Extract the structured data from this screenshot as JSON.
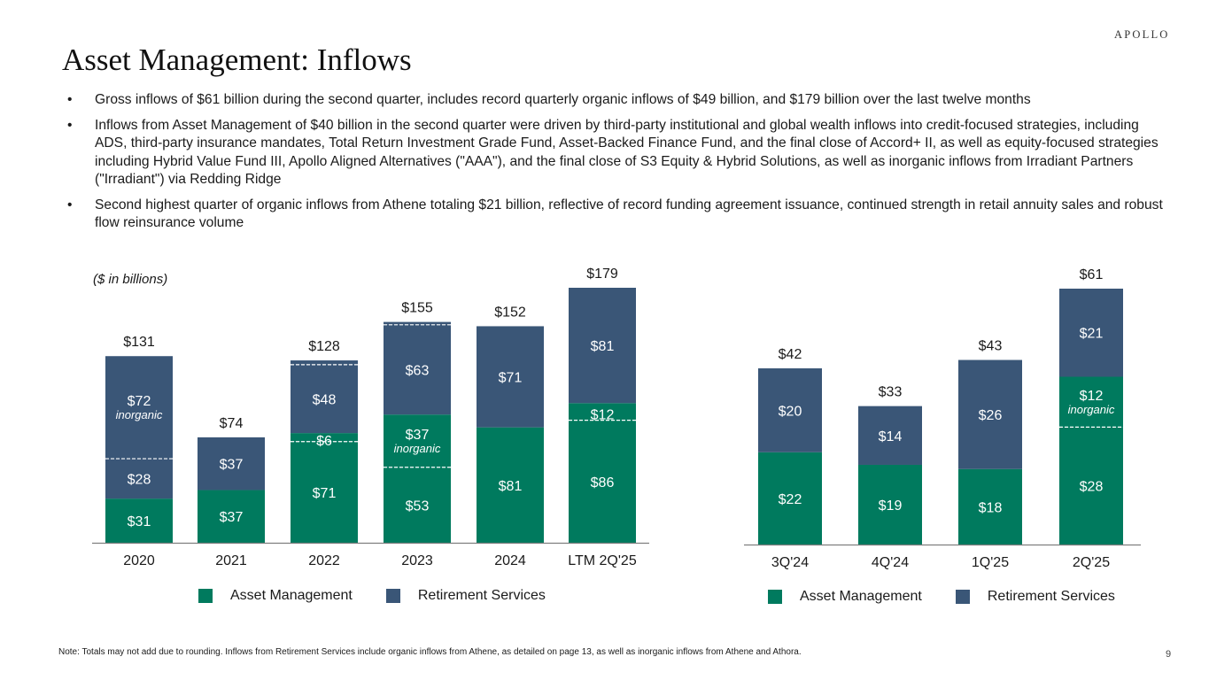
{
  "header": {
    "logo": "APOLLO",
    "title": "Asset Management: Inflows"
  },
  "bullets": [
    "Gross inflows of $61 billion during the second quarter, includes record quarterly organic inflows of $49 billion, and $179 billion over the last twelve months",
    "Inflows from Asset Management of $40 billion in the second quarter were driven by third-party institutional and global wealth inflows into credit-focused strategies, including ADS, third-party insurance mandates, Total Return Investment Grade Fund, Asset-Backed Finance Fund, and the final close of Accord+ II, as well as equity-focused strategies including Hybrid Value Fund III, Apollo Aligned Alternatives (\"AAA\"), and the final close of S3 Equity & Hybrid Solutions, as well as inorganic inflows from Irradiant Partners (\"Irradiant\") via Redding Ridge",
    "Second highest quarter of organic inflows from Athene totaling $21 billion, reflective of record funding agreement issuance, continued strength in retail annuity sales and robust flow reinsurance volume"
  ],
  "bullet_glyph": "•",
  "colors": {
    "asset_management": "#007a5e",
    "retirement_services": "#3a5677",
    "divider": "#ffffff",
    "axis": "#7f7f7f"
  },
  "chart_data": [
    {
      "type": "bar",
      "stacked": true,
      "title": "",
      "unit_note": "($ in billions)",
      "categories": [
        "2020",
        "2021",
        "2022",
        "2023",
        "2024",
        "LTM 2Q'25"
      ],
      "series": [
        {
          "name": "Asset Management",
          "values": [
            31,
            37,
            77,
            90,
            81,
            98
          ]
        },
        {
          "name": "Retirement Services",
          "values": [
            100,
            37,
            51,
            65,
            71,
            81
          ]
        }
      ],
      "segments": [
        [
          {
            "series": "Asset Management",
            "value": 31,
            "label": "$31"
          },
          {
            "series": "Retirement Services",
            "value": 28,
            "label": "$28"
          },
          {
            "series": "Retirement Services",
            "value": 72,
            "label": "$72",
            "sublabel": "inorganic",
            "divider_below": true
          }
        ],
        [
          {
            "series": "Asset Management",
            "value": 37,
            "label": "$37"
          },
          {
            "series": "Retirement Services",
            "value": 37,
            "label": "$37"
          }
        ],
        [
          {
            "series": "Asset Management",
            "value": 71,
            "label": "$71"
          },
          {
            "series": "Asset Management",
            "value": 6,
            "label": "$6",
            "sublabel": "",
            "divider_below": true
          },
          {
            "series": "Retirement Services",
            "value": 48,
            "label": "$48"
          },
          {
            "series": "Retirement Services",
            "value": 3,
            "label": "",
            "divider_below": true
          }
        ],
        [
          {
            "series": "Asset Management",
            "value": 53,
            "label": "$53"
          },
          {
            "series": "Asset Management",
            "value": 37,
            "label": "$37",
            "sublabel": "inorganic",
            "divider_below": true
          },
          {
            "series": "Retirement Services",
            "value": 63,
            "label": "$63"
          },
          {
            "series": "Retirement Services",
            "value": 2,
            "label": "",
            "divider_below": true
          }
        ],
        [
          {
            "series": "Asset Management",
            "value": 81,
            "label": "$81"
          },
          {
            "series": "Retirement Services",
            "value": 71,
            "label": "$71"
          }
        ],
        [
          {
            "series": "Asset Management",
            "value": 86,
            "label": "$86"
          },
          {
            "series": "Asset Management",
            "value": 12,
            "label": "$12",
            "divider_below": true
          },
          {
            "series": "Retirement Services",
            "value": 81,
            "label": "$81"
          }
        ]
      ],
      "totals": [
        "$131",
        "$74",
        "$128",
        "$155",
        "$152",
        "$179"
      ],
      "xlabel": "",
      "ylabel": "",
      "ylim": [
        0,
        179
      ],
      "grid": false,
      "legend": {
        "placement": "bottom",
        "entries": [
          "Asset Management",
          "Retirement Services"
        ]
      }
    },
    {
      "type": "bar",
      "stacked": true,
      "title": "",
      "categories": [
        "3Q'24",
        "4Q'24",
        "1Q'25",
        "2Q'25"
      ],
      "series": [
        {
          "name": "Asset Management",
          "values": [
            22,
            19,
            18,
            40
          ]
        },
        {
          "name": "Retirement Services",
          "values": [
            20,
            14,
            26,
            21
          ]
        }
      ],
      "segments": [
        [
          {
            "series": "Asset Management",
            "value": 22,
            "label": "$22"
          },
          {
            "series": "Retirement Services",
            "value": 20,
            "label": "$20"
          }
        ],
        [
          {
            "series": "Asset Management",
            "value": 19,
            "label": "$19"
          },
          {
            "series": "Retirement Services",
            "value": 14,
            "label": "$14"
          }
        ],
        [
          {
            "series": "Asset Management",
            "value": 18,
            "label": "$18"
          },
          {
            "series": "Retirement Services",
            "value": 26,
            "label": "$26"
          }
        ],
        [
          {
            "series": "Asset Management",
            "value": 28,
            "label": "$28"
          },
          {
            "series": "Asset Management",
            "value": 12,
            "label": "$12",
            "sublabel": "inorganic",
            "divider_below": true
          },
          {
            "series": "Retirement Services",
            "value": 21,
            "label": "$21"
          }
        ]
      ],
      "totals": [
        "$42",
        "$33",
        "$43",
        "$61"
      ],
      "xlabel": "",
      "ylabel": "",
      "ylim": [
        0,
        61
      ],
      "grid": false,
      "legend": {
        "placement": "bottom",
        "entries": [
          "Asset Management",
          "Retirement Services"
        ]
      }
    }
  ],
  "legend_labels": {
    "asset_management": "Asset Management",
    "retirement_services": "Retirement Services"
  },
  "footer": {
    "note": "Note: Totals may not add due to rounding. Inflows from Retirement Services include organic inflows from Athene, as detailed on page 13, as well as inorganic inflows from Athene and Athora.",
    "page_number": "9"
  }
}
